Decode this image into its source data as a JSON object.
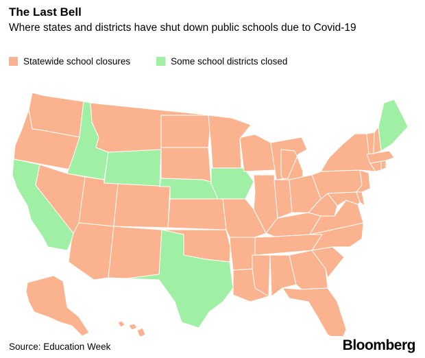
{
  "header": {
    "title": "The Last Bell",
    "subtitle": "Where states and districts have shut down public schools due to Covid-19"
  },
  "legend": [
    {
      "key": "statewide",
      "label": "Statewide school closures",
      "color": "#FBB38F"
    },
    {
      "key": "some",
      "label": "Some school districts closed",
      "color": "#9FF0A4"
    }
  ],
  "map": {
    "states": [
      {
        "name": "WA",
        "status": "statewide"
      },
      {
        "name": "OR",
        "status": "statewide"
      },
      {
        "name": "CA",
        "status": "some"
      },
      {
        "name": "ID",
        "status": "some"
      },
      {
        "name": "NV",
        "status": "statewide"
      },
      {
        "name": "MT",
        "status": "statewide"
      },
      {
        "name": "WY",
        "status": "some"
      },
      {
        "name": "UT",
        "status": "statewide"
      },
      {
        "name": "AZ",
        "status": "statewide"
      },
      {
        "name": "CO",
        "status": "statewide"
      },
      {
        "name": "NM",
        "status": "statewide"
      },
      {
        "name": "ND",
        "status": "statewide"
      },
      {
        "name": "SD",
        "status": "statewide"
      },
      {
        "name": "NE",
        "status": "some"
      },
      {
        "name": "KS",
        "status": "statewide"
      },
      {
        "name": "OK",
        "status": "statewide"
      },
      {
        "name": "TX",
        "status": "some"
      },
      {
        "name": "MN",
        "status": "statewide"
      },
      {
        "name": "IA",
        "status": "some"
      },
      {
        "name": "MO",
        "status": "statewide"
      },
      {
        "name": "AR",
        "status": "statewide"
      },
      {
        "name": "LA",
        "status": "statewide"
      },
      {
        "name": "WI",
        "status": "statewide"
      },
      {
        "name": "IL",
        "status": "statewide"
      },
      {
        "name": "MI",
        "status": "statewide"
      },
      {
        "name": "IN",
        "status": "statewide"
      },
      {
        "name": "OH",
        "status": "statewide"
      },
      {
        "name": "KY",
        "status": "statewide"
      },
      {
        "name": "TN",
        "status": "statewide"
      },
      {
        "name": "MS",
        "status": "statewide"
      },
      {
        "name": "AL",
        "status": "statewide"
      },
      {
        "name": "GA",
        "status": "statewide"
      },
      {
        "name": "FL",
        "status": "statewide"
      },
      {
        "name": "SC",
        "status": "statewide"
      },
      {
        "name": "NC",
        "status": "statewide"
      },
      {
        "name": "VA",
        "status": "statewide"
      },
      {
        "name": "WV",
        "status": "statewide"
      },
      {
        "name": "PA",
        "status": "statewide"
      },
      {
        "name": "NY",
        "status": "statewide"
      },
      {
        "name": "MD",
        "status": "statewide"
      },
      {
        "name": "DE",
        "status": "statewide"
      },
      {
        "name": "NJ",
        "status": "statewide"
      },
      {
        "name": "CT",
        "status": "statewide"
      },
      {
        "name": "RI",
        "status": "statewide"
      },
      {
        "name": "MA",
        "status": "statewide"
      },
      {
        "name": "VT",
        "status": "statewide"
      },
      {
        "name": "NH",
        "status": "statewide"
      },
      {
        "name": "ME",
        "status": "some"
      },
      {
        "name": "AK",
        "status": "statewide"
      },
      {
        "name": "HI",
        "status": "statewide"
      }
    ]
  },
  "footer": {
    "source": "Source: Education Week",
    "brand": "Bloomberg"
  }
}
